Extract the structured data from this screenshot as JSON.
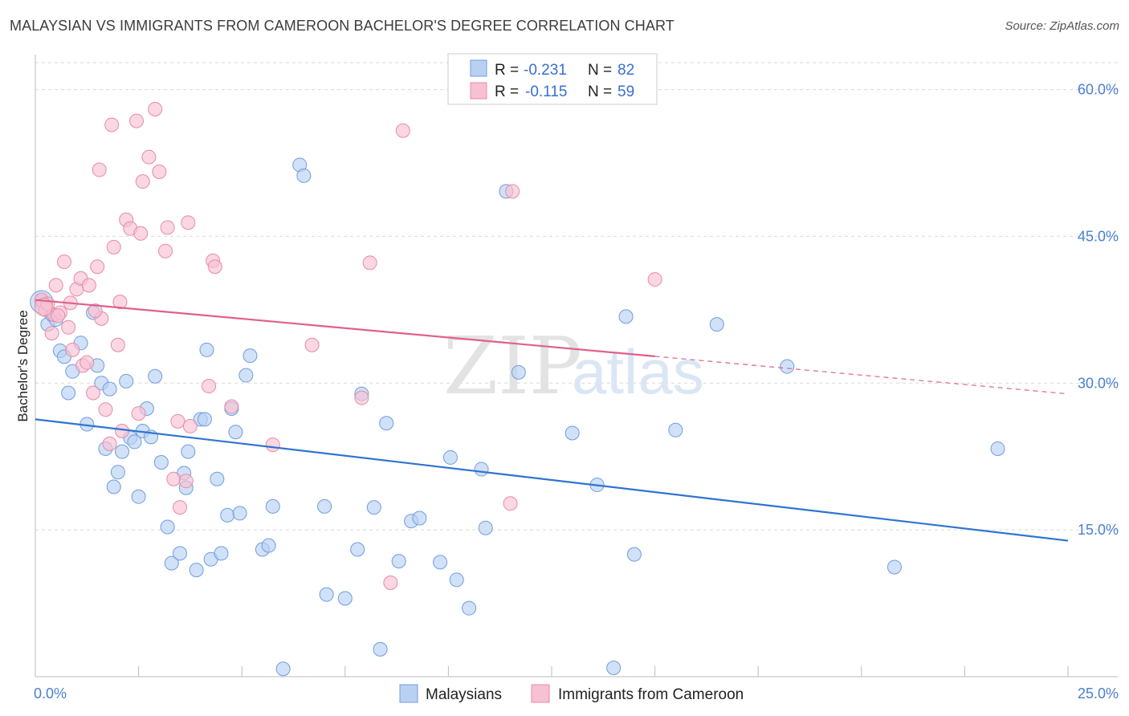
{
  "title": "MALAYSIAN VS IMMIGRANTS FROM CAMEROON BACHELOR'S DEGREE CORRELATION CHART",
  "source": "Source: ZipAtlas.com",
  "watermark": {
    "zip": "ZIP",
    "atlas": "atlas"
  },
  "colors": {
    "blue_fill": "#b8d1f2",
    "blue_stroke": "#6f9de0",
    "blue_line": "#2f74d0",
    "pink_fill": "#f7c1d2",
    "pink_stroke": "#e88aa8",
    "pink_line": "#e0608a",
    "grid": "#d9d9d9",
    "tick_text": "#4a7fd0"
  },
  "legend": {
    "rows": [
      {
        "r_label": "R = ",
        "r_value": "-0.231",
        "n_label": "N = ",
        "n_value": "82",
        "color": "#b8d1f2"
      },
      {
        "r_label": "R = ",
        "r_value": "-0.115",
        "n_label": "N = ",
        "n_value": "59",
        "color": "#f7c1d2"
      }
    ]
  },
  "chart_data": {
    "type": "scatter",
    "title": "MALAYSIAN VS IMMIGRANTS FROM CAMEROON BACHELOR'S DEGREE CORRELATION CHART",
    "xlabel": "",
    "ylabel": "Bachelor's Degree",
    "xlim": [
      0,
      25
    ],
    "ylim": [
      0,
      63
    ],
    "x_tick_labels": [
      "0.0%",
      "25.0%"
    ],
    "y_ticks": [
      15,
      30,
      45,
      60
    ],
    "y_tick_labels": [
      "15.0%",
      "30.0%",
      "45.0%",
      "60.0%"
    ],
    "grid": true,
    "series": [
      {
        "name": "Malaysians",
        "color": "#b8d1f2",
        "trend": {
          "x0": 0,
          "y0": 26.3,
          "x1": 25,
          "y1": 13.9,
          "dash_from_x": null
        },
        "points": [
          [
            0.15,
            38.3
          ],
          [
            0.3,
            36.0
          ],
          [
            0.4,
            37.0
          ],
          [
            0.5,
            36.5
          ],
          [
            0.6,
            33.3
          ],
          [
            0.7,
            32.7
          ],
          [
            0.8,
            29.0
          ],
          [
            0.9,
            31.2
          ],
          [
            1.1,
            34.1
          ],
          [
            1.25,
            25.8
          ],
          [
            1.4,
            37.2
          ],
          [
            1.5,
            31.8
          ],
          [
            1.6,
            30.0
          ],
          [
            1.7,
            23.3
          ],
          [
            1.8,
            29.4
          ],
          [
            1.9,
            19.4
          ],
          [
            2.0,
            20.9
          ],
          [
            2.1,
            23.0
          ],
          [
            2.2,
            30.2
          ],
          [
            2.3,
            24.4
          ],
          [
            2.4,
            24.0
          ],
          [
            2.5,
            18.4
          ],
          [
            2.6,
            25.1
          ],
          [
            2.7,
            27.4
          ],
          [
            2.8,
            24.5
          ],
          [
            2.9,
            30.7
          ],
          [
            3.05,
            21.9
          ],
          [
            3.2,
            15.3
          ],
          [
            3.3,
            11.6
          ],
          [
            3.5,
            12.6
          ],
          [
            3.6,
            20.8
          ],
          [
            3.65,
            19.3
          ],
          [
            3.7,
            23.0
          ],
          [
            3.9,
            10.9
          ],
          [
            4.0,
            26.3
          ],
          [
            4.1,
            26.3
          ],
          [
            4.15,
            33.4
          ],
          [
            4.25,
            12.0
          ],
          [
            4.4,
            20.2
          ],
          [
            4.5,
            12.6
          ],
          [
            4.65,
            16.5
          ],
          [
            4.75,
            27.4
          ],
          [
            4.85,
            25.0
          ],
          [
            4.95,
            16.7
          ],
          [
            5.1,
            30.8
          ],
          [
            5.2,
            32.8
          ],
          [
            5.5,
            13.0
          ],
          [
            5.65,
            13.4
          ],
          [
            5.75,
            17.4
          ],
          [
            6.0,
            0.8
          ],
          [
            6.4,
            52.3
          ],
          [
            6.5,
            51.2
          ],
          [
            7.0,
            17.4
          ],
          [
            7.05,
            8.4
          ],
          [
            7.5,
            8.0
          ],
          [
            7.8,
            13.0
          ],
          [
            7.9,
            28.9
          ],
          [
            8.2,
            17.3
          ],
          [
            8.35,
            2.8
          ],
          [
            8.5,
            25.9
          ],
          [
            8.8,
            11.8
          ],
          [
            9.1,
            15.9
          ],
          [
            9.3,
            16.2
          ],
          [
            9.8,
            11.7
          ],
          [
            10.05,
            22.4
          ],
          [
            10.2,
            9.9
          ],
          [
            10.5,
            7.0
          ],
          [
            10.8,
            21.2
          ],
          [
            10.9,
            15.2
          ],
          [
            11.4,
            49.6
          ],
          [
            11.7,
            31.1
          ],
          [
            13.0,
            24.9
          ],
          [
            13.6,
            19.6
          ],
          [
            14.0,
            0.9
          ],
          [
            14.3,
            36.8
          ],
          [
            14.5,
            12.5
          ],
          [
            15.5,
            25.2
          ],
          [
            16.5,
            36.0
          ],
          [
            18.2,
            31.7
          ],
          [
            20.8,
            11.2
          ],
          [
            23.3,
            23.3
          ]
        ]
      },
      {
        "name": "Immigrants from Cameroon",
        "color": "#f7c1d2",
        "trend": {
          "x0": 0,
          "y0": 38.5,
          "x1": 25,
          "y1": 28.9,
          "dash_from_x": 15.0
        },
        "points": [
          [
            0.15,
            38.5
          ],
          [
            0.25,
            37.5
          ],
          [
            0.4,
            35.1
          ],
          [
            0.45,
            37.0
          ],
          [
            0.5,
            40.0
          ],
          [
            0.6,
            37.2
          ],
          [
            0.7,
            42.4
          ],
          [
            0.8,
            35.7
          ],
          [
            0.85,
            38.2
          ],
          [
            0.9,
            33.4
          ],
          [
            1.0,
            39.6
          ],
          [
            1.1,
            40.7
          ],
          [
            1.15,
            31.8
          ],
          [
            1.25,
            32.1
          ],
          [
            1.3,
            40.0
          ],
          [
            1.4,
            29.0
          ],
          [
            1.5,
            41.9
          ],
          [
            1.55,
            51.8
          ],
          [
            1.6,
            36.6
          ],
          [
            1.7,
            27.3
          ],
          [
            1.8,
            23.8
          ],
          [
            1.85,
            56.4
          ],
          [
            1.9,
            43.9
          ],
          [
            2.0,
            33.9
          ],
          [
            2.05,
            38.3
          ],
          [
            2.1,
            25.1
          ],
          [
            2.2,
            46.7
          ],
          [
            2.3,
            45.8
          ],
          [
            2.45,
            56.8
          ],
          [
            2.5,
            26.9
          ],
          [
            2.55,
            45.3
          ],
          [
            2.6,
            50.6
          ],
          [
            2.75,
            53.1
          ],
          [
            2.9,
            58.0
          ],
          [
            3.0,
            51.6
          ],
          [
            3.15,
            43.5
          ],
          [
            3.2,
            45.9
          ],
          [
            3.35,
            20.2
          ],
          [
            3.45,
            26.1
          ],
          [
            3.5,
            17.3
          ],
          [
            3.7,
            46.4
          ],
          [
            3.65,
            20.0
          ],
          [
            3.75,
            25.6
          ],
          [
            4.2,
            29.7
          ],
          [
            4.3,
            42.5
          ],
          [
            4.35,
            41.9
          ],
          [
            4.75,
            27.6
          ],
          [
            5.75,
            23.7
          ],
          [
            6.7,
            33.9
          ],
          [
            7.9,
            28.5
          ],
          [
            8.1,
            42.3
          ],
          [
            8.6,
            9.6
          ],
          [
            8.9,
            55.8
          ],
          [
            11.5,
            17.7
          ],
          [
            11.55,
            49.6
          ],
          [
            15.0,
            40.6
          ],
          [
            0.3,
            38.1
          ],
          [
            0.55,
            36.9
          ],
          [
            1.45,
            37.4
          ]
        ]
      }
    ]
  },
  "bottom_legend": [
    "Malaysians",
    "Immigrants from Cameroon"
  ]
}
